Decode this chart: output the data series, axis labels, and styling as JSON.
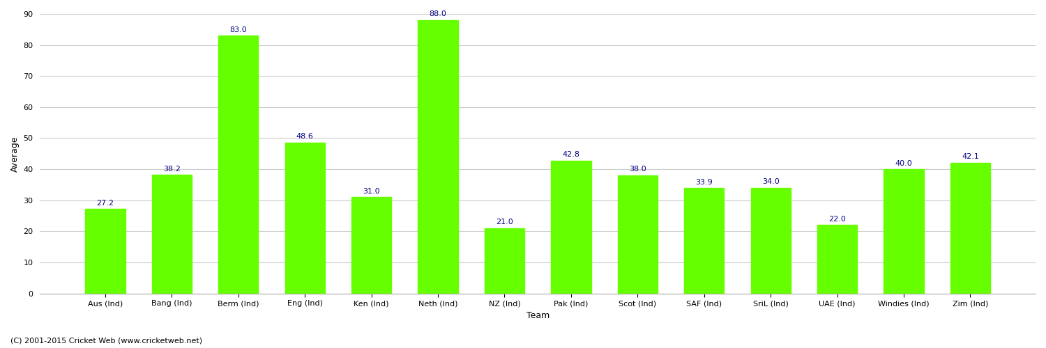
{
  "categories": [
    "Aus (Ind)",
    "Bang (Ind)",
    "Berm (Ind)",
    "Eng (Ind)",
    "Ken (Ind)",
    "Neth (Ind)",
    "NZ (Ind)",
    "Pak (Ind)",
    "Scot (Ind)",
    "SAF (Ind)",
    "SriL (Ind)",
    "UAE (Ind)",
    "Windies (Ind)",
    "Zim (Ind)"
  ],
  "values": [
    27.2,
    38.2,
    83.0,
    48.6,
    31.0,
    88.0,
    21.0,
    42.8,
    38.0,
    33.9,
    34.0,
    22.0,
    40.0,
    42.1
  ],
  "bar_color": "#66ff00",
  "bar_edge_color": "#66ff00",
  "label_color": "#000080",
  "ylabel": "Average",
  "xlabel": "Team",
  "ylim": [
    0,
    90
  ],
  "yticks": [
    0,
    10,
    20,
    30,
    40,
    50,
    60,
    70,
    80,
    90
  ],
  "grid_color": "#cccccc",
  "background_color": "#ffffff",
  "footer": "(C) 2001-2015 Cricket Web (www.cricketweb.net)",
  "axis_label_fontsize": 9,
  "tick_fontsize": 8,
  "bar_label_fontsize": 8
}
